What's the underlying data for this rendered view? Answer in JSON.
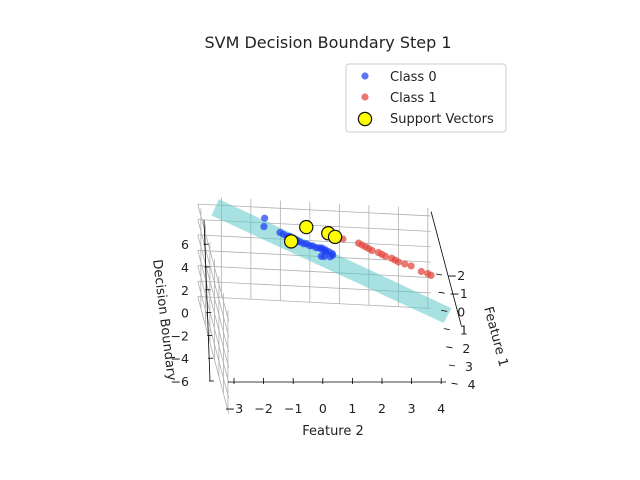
{
  "chart_data": {
    "type": "scatter",
    "projection": "3d",
    "title": "SVM Decision Boundary Step 1",
    "xlabel": "Feature 1",
    "ylabel": "Feature 2",
    "zlabel": "Decision Boundary",
    "x_ticks": [
      "−2",
      "−1",
      "0",
      "1",
      "2",
      "3",
      "4"
    ],
    "y_ticks": [
      "−3",
      "−2",
      "−1",
      "0",
      "1",
      "2",
      "3",
      "4"
    ],
    "z_ticks": [
      "−6",
      "−4",
      "−2",
      "0",
      "2",
      "4",
      "6"
    ],
    "xlim": [
      -2.7,
      4.2
    ],
    "ylim": [
      -3.8,
      4.1
    ],
    "zlim": [
      -6,
      7
    ],
    "grid": true,
    "legend_position": "upper-right",
    "colors": {
      "class0": "#1f3ff5",
      "class1": "#e2443a",
      "support": "#ffff00",
      "plane": "#5ec8c8",
      "grid": "#b0b0b0"
    },
    "series": [
      {
        "name": "Class 0",
        "marker": "circle",
        "points": [
          {
            "x": -1.6,
            "y": -1.7
          },
          {
            "x": -1.1,
            "y": -1.8
          },
          {
            "x": -0.8,
            "y": -1.3
          },
          {
            "x": -0.7,
            "y": -1.2
          },
          {
            "x": -0.6,
            "y": -1.1
          },
          {
            "x": -0.5,
            "y": -1.0
          },
          {
            "x": -0.4,
            "y": -1.0
          },
          {
            "x": -0.4,
            "y": -0.8
          },
          {
            "x": -0.3,
            "y": -0.8
          },
          {
            "x": -0.3,
            "y": -0.7
          },
          {
            "x": -0.2,
            "y": -0.6
          },
          {
            "x": -0.2,
            "y": -0.5
          },
          {
            "x": -0.1,
            "y": -0.4
          },
          {
            "x": -0.1,
            "y": -0.3
          },
          {
            "x": 0.0,
            "y": -0.2
          },
          {
            "x": 0.0,
            "y": -0.1
          },
          {
            "x": 0.1,
            "y": 0.0
          },
          {
            "x": 0.1,
            "y": 0.1
          },
          {
            "x": 0.2,
            "y": 0.1
          },
          {
            "x": 0.2,
            "y": 0.2
          },
          {
            "x": 0.3,
            "y": 0.3
          },
          {
            "x": 0.4,
            "y": 0.3
          },
          {
            "x": 0.5,
            "y": -0.1
          },
          {
            "x": 0.5,
            "y": 0.0
          },
          {
            "x": 0.5,
            "y": 0.2
          },
          {
            "x": -0.5,
            "y": -0.9
          },
          {
            "x": -0.6,
            "y": -1.0
          },
          {
            "x": 0.0,
            "y": 0.0
          }
        ]
      },
      {
        "name": "Class 1",
        "marker": "circle",
        "points": [
          {
            "x": -1.2,
            "y": -0.4
          },
          {
            "x": -1.1,
            "y": -0.3
          },
          {
            "x": -0.9,
            "y": 0.5
          },
          {
            "x": -0.8,
            "y": 0.6
          },
          {
            "x": -0.6,
            "y": 0.8
          },
          {
            "x": -0.4,
            "y": 1.3
          },
          {
            "x": -0.3,
            "y": 1.4
          },
          {
            "x": -0.2,
            "y": 1.5
          },
          {
            "x": -0.1,
            "y": 1.6
          },
          {
            "x": 0.0,
            "y": 1.7
          },
          {
            "x": 0.1,
            "y": 1.9
          },
          {
            "x": 0.2,
            "y": 2.0
          },
          {
            "x": 0.3,
            "y": 2.1
          },
          {
            "x": 0.4,
            "y": 2.3
          },
          {
            "x": 0.5,
            "y": 2.4
          },
          {
            "x": 0.6,
            "y": 2.5
          },
          {
            "x": 0.7,
            "y": 2.7
          },
          {
            "x": 0.8,
            "y": 2.9
          },
          {
            "x": 1.1,
            "y": 3.2
          },
          {
            "x": 1.2,
            "y": 3.4
          },
          {
            "x": 1.3,
            "y": 3.5
          }
        ]
      },
      {
        "name": "Support Vectors",
        "marker": "circle-outlined",
        "points": [
          {
            "x": -1.2,
            "y": -0.35
          },
          {
            "x": -0.9,
            "y": 0.35
          },
          {
            "x": -0.7,
            "y": 0.55
          },
          {
            "x": -0.3,
            "y": -1.0
          }
        ]
      }
    ]
  }
}
